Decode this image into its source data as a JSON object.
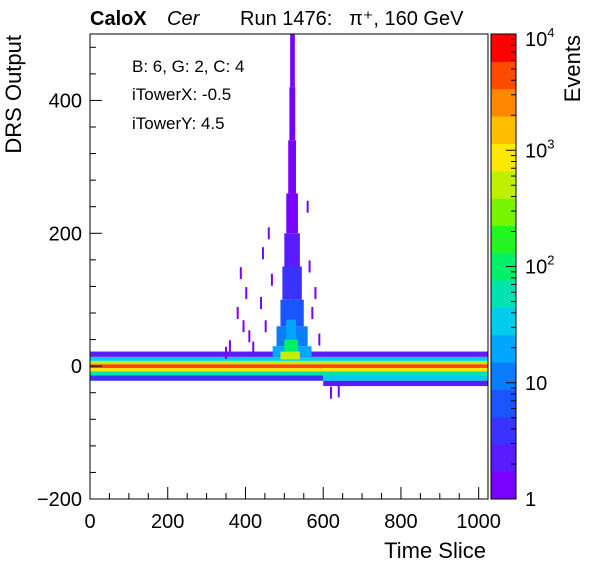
{
  "header": {
    "experiment": "CaloX",
    "channel": "Cer",
    "run": "Run 1476:",
    "beam": "π⁺, 160 GeV"
  },
  "info": {
    "board": "B: 6, G: 2, C: 4",
    "tower_x": "iTowerX: -0.5",
    "tower_y": "iTowerY: 4.5"
  },
  "chart_data": {
    "type": "heatmap",
    "title": "",
    "xlabel": "Time Slice",
    "ylabel": "DRS Output",
    "zlabel": "Events",
    "xlim": [
      0,
      1024
    ],
    "ylim": [
      -200,
      500
    ],
    "zlim": [
      1,
      10000
    ],
    "z_scale": "log",
    "x_ticks": [
      "0",
      "200",
      "400",
      "600",
      "800",
      "1000"
    ],
    "y_ticks": [
      "−200",
      "0",
      "200",
      "400"
    ],
    "z_tick_labels": [
      {
        "base": "1",
        "exp": ""
      },
      {
        "base": "10",
        "exp": ""
      },
      {
        "base": "10",
        "exp": "2"
      },
      {
        "base": "10",
        "exp": "3"
      },
      {
        "base": "10",
        "exp": "4"
      }
    ],
    "palette": [
      "#7a00ff",
      "#5a1cff",
      "#3a33ff",
      "#1a55ff",
      "#0a7dff",
      "#00a6ff",
      "#00ccee",
      "#00e3b0",
      "#00f06a",
      "#22f522",
      "#77f500",
      "#c0f000",
      "#ffe800",
      "#ffbe00",
      "#ff8800",
      "#ff4a00",
      "#ff0000"
    ],
    "pedestal": [
      {
        "x": [
          0,
          1024
        ],
        "y": [
          -3,
          3
        ],
        "events": 5000
      },
      {
        "x": [
          0,
          1024
        ],
        "y": [
          3,
          8
        ],
        "events": 600
      },
      {
        "x": [
          0,
          1024
        ],
        "y": [
          -8,
          -3
        ],
        "events": 800
      },
      {
        "x": [
          0,
          1024
        ],
        "y": [
          8,
          14
        ],
        "events": 40
      },
      {
        "x": [
          0,
          1024
        ],
        "y": [
          -14,
          -8
        ],
        "events": 60
      },
      {
        "x": [
          0,
          1024
        ],
        "y": [
          14,
          22
        ],
        "events": 2
      },
      {
        "x": [
          0,
          600
        ],
        "y": [
          -22,
          -14
        ],
        "events": 3
      },
      {
        "x": [
          600,
          1024
        ],
        "y": [
          -22,
          -14
        ],
        "events": 30
      },
      {
        "x": [
          600,
          1024
        ],
        "y": [
          -30,
          -22
        ],
        "events": 2
      }
    ],
    "pulse": [
      {
        "x": [
          470,
          570
        ],
        "y": [
          14,
          30
        ],
        "events": 25
      },
      {
        "x": [
          480,
          560
        ],
        "y": [
          30,
          60
        ],
        "events": 12
      },
      {
        "x": [
          490,
          550
        ],
        "y": [
          60,
          100
        ],
        "events": 6
      },
      {
        "x": [
          495,
          545
        ],
        "y": [
          100,
          150
        ],
        "events": 3
      },
      {
        "x": [
          500,
          540
        ],
        "y": [
          150,
          200
        ],
        "events": 2
      },
      {
        "x": [
          505,
          535
        ],
        "y": [
          200,
          260
        ],
        "events": 1
      },
      {
        "x": [
          510,
          530
        ],
        "y": [
          260,
          340
        ],
        "events": 1
      },
      {
        "x": [
          513,
          528
        ],
        "y": [
          340,
          420
        ],
        "events": 1
      },
      {
        "x": [
          515,
          527
        ],
        "y": [
          420,
          500
        ],
        "events": 1
      }
    ],
    "pulse_core": [
      {
        "x": [
          490,
          540
        ],
        "y": [
          10,
          22
        ],
        "events": 500
      },
      {
        "x": [
          500,
          535
        ],
        "y": [
          22,
          40
        ],
        "events": 80
      },
      {
        "x": [
          505,
          530
        ],
        "y": [
          40,
          70
        ],
        "events": 20
      }
    ],
    "scattered": [
      {
        "x": 380,
        "y": 80
      },
      {
        "x": 388,
        "y": 140
      },
      {
        "x": 395,
        "y": 60
      },
      {
        "x": 402,
        "y": 110
      },
      {
        "x": 410,
        "y": 45
      },
      {
        "x": 440,
        "y": 95
      },
      {
        "x": 445,
        "y": 170
      },
      {
        "x": 452,
        "y": 60
      },
      {
        "x": 460,
        "y": 200
      },
      {
        "x": 468,
        "y": 130
      },
      {
        "x": 560,
        "y": 240
      },
      {
        "x": 565,
        "y": 150
      },
      {
        "x": 572,
        "y": 80
      },
      {
        "x": 580,
        "y": 110
      },
      {
        "x": 590,
        "y": 40
      },
      {
        "x": 620,
        "y": -40
      },
      {
        "x": 640,
        "y": -38
      },
      {
        "x": 360,
        "y": 30
      },
      {
        "x": 350,
        "y": 20
      },
      {
        "x": 420,
        "y": 28
      }
    ],
    "grid": false,
    "legend": "none"
  }
}
